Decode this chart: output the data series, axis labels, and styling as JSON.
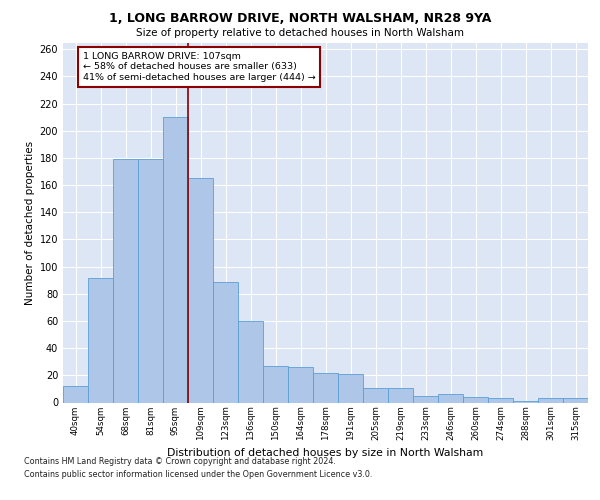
{
  "title1": "1, LONG BARROW DRIVE, NORTH WALSHAM, NR28 9YA",
  "title2": "Size of property relative to detached houses in North Walsham",
  "xlabel": "Distribution of detached houses by size in North Walsham",
  "ylabel": "Number of detached properties",
  "categories": [
    "40sqm",
    "54sqm",
    "68sqm",
    "81sqm",
    "95sqm",
    "109sqm",
    "123sqm",
    "136sqm",
    "150sqm",
    "164sqm",
    "178sqm",
    "191sqm",
    "205sqm",
    "219sqm",
    "233sqm",
    "246sqm",
    "260sqm",
    "274sqm",
    "288sqm",
    "301sqm",
    "315sqm"
  ],
  "values": [
    12,
    92,
    179,
    179,
    210,
    165,
    89,
    60,
    27,
    26,
    22,
    21,
    11,
    11,
    5,
    6,
    4,
    3,
    1,
    3,
    3
  ],
  "bar_color": "#aec6e8",
  "bar_edge_color": "#5a9fd4",
  "vline_color": "#8b0000",
  "annotation_text": "1 LONG BARROW DRIVE: 107sqm\n← 58% of detached houses are smaller (633)\n41% of semi-detached houses are larger (444) →",
  "annotation_box_color": "white",
  "annotation_box_edge": "#8b0000",
  "ylim": [
    0,
    265
  ],
  "yticks": [
    0,
    20,
    40,
    60,
    80,
    100,
    120,
    140,
    160,
    180,
    200,
    220,
    240,
    260
  ],
  "background_color": "#dce6f5",
  "grid_color": "white",
  "footnote1": "Contains HM Land Registry data © Crown copyright and database right 2024.",
  "footnote2": "Contains public sector information licensed under the Open Government Licence v3.0."
}
